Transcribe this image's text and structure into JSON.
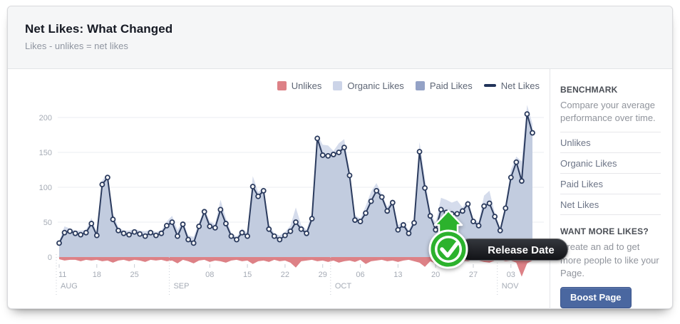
{
  "header": {
    "title": "Net Likes: What Changed",
    "subtitle": "Likes - unlikes = net likes"
  },
  "legend": [
    {
      "label": "Unlikes",
      "color": "#dd8186",
      "type": "square"
    },
    {
      "label": "Organic Likes",
      "color": "#ccd4e8",
      "type": "square"
    },
    {
      "label": "Paid Likes",
      "color": "#94a2c6",
      "type": "square"
    },
    {
      "label": "Net Likes",
      "color": "#22345a",
      "type": "line"
    }
  ],
  "sidebar": {
    "benchmark_title": "BENCHMARK",
    "benchmark_desc": "Compare your average performance over time.",
    "items": [
      "Unlikes",
      "Organic Likes",
      "Paid Likes",
      "Net Likes"
    ],
    "promo_title": "WANT MORE LIKES?",
    "promo_desc": "Create an ad to get more people to like your Page.",
    "boost_label": "Boost Page"
  },
  "chart_data": {
    "type": "area+line",
    "title": "Net Likes: What Changed",
    "y_axis": {
      "ticks": [
        0,
        50,
        100,
        150,
        200
      ],
      "ylim": [
        -30,
        235
      ]
    },
    "x_week_labels": [
      {
        "label": "11",
        "day": 0
      },
      {
        "label": "18",
        "day": 7
      },
      {
        "label": "25",
        "day": 14
      },
      {
        "label": "08",
        "day": 28
      },
      {
        "label": "15",
        "day": 35
      },
      {
        "label": "22",
        "day": 42
      },
      {
        "label": "29",
        "day": 49
      },
      {
        "label": "06",
        "day": 56
      },
      {
        "label": "13",
        "day": 63
      },
      {
        "label": "20",
        "day": 70
      },
      {
        "label": "27",
        "day": 77
      },
      {
        "label": "03",
        "day": 84
      }
    ],
    "months": [
      {
        "label": "AUG",
        "day": 0
      },
      {
        "label": "SEP",
        "day": 21
      },
      {
        "label": "OCT",
        "day": 51
      },
      {
        "label": "NOV",
        "day": 82
      }
    ],
    "series": {
      "net_likes": [
        20,
        35,
        37,
        34,
        32,
        35,
        48,
        31,
        104,
        114,
        54,
        38,
        34,
        32,
        36,
        33,
        30,
        35,
        31,
        34,
        45,
        50,
        30,
        47,
        25,
        20,
        44,
        65,
        44,
        42,
        68,
        48,
        30,
        25,
        35,
        30,
        101,
        87,
        95,
        40,
        30,
        25,
        31,
        37,
        50,
        40,
        34,
        55,
        170,
        146,
        145,
        147,
        150,
        157,
        117,
        53,
        51,
        63,
        80,
        95,
        86,
        66,
        78,
        39,
        46,
        34,
        49,
        151,
        99,
        59,
        39,
        68,
        64,
        62,
        62,
        66,
        76,
        51,
        45,
        73,
        77,
        58,
        38,
        70,
        114,
        136,
        109,
        205,
        178
      ],
      "unlikes": [
        -3,
        -5,
        -4,
        -4,
        -6,
        -4,
        -5,
        -4,
        -6,
        -5,
        -8,
        -5,
        -4,
        -6,
        -4,
        -5,
        -7,
        -4,
        -5,
        -4,
        -6,
        -5,
        -9,
        -4,
        -6,
        -9,
        -5,
        -4,
        -7,
        -5,
        -6,
        -8,
        -5,
        -4,
        -6,
        -5,
        -10,
        -6,
        -5,
        -7,
        -4,
        -6,
        -5,
        -8,
        -15,
        -6,
        -5,
        -4,
        -6,
        -5,
        -7,
        -5,
        -8,
        -6,
        -5,
        -7,
        -4,
        -10,
        -6,
        -5,
        -4,
        -6,
        -5,
        -7,
        -5,
        -4,
        -6,
        -8,
        -14,
        -6,
        -9,
        -5,
        -4,
        -6,
        -13,
        -5,
        -6,
        -4,
        -5,
        -7,
        -8,
        -5,
        -4,
        -6,
        -5,
        -8,
        -28,
        -9,
        -5
      ],
      "organic_extra": [
        0,
        4,
        0,
        0,
        0,
        0,
        3,
        0,
        0,
        0,
        0,
        0,
        0,
        0,
        0,
        0,
        0,
        0,
        0,
        0,
        0,
        4,
        0,
        0,
        0,
        0,
        0,
        0,
        0,
        0,
        8,
        0,
        0,
        0,
        0,
        0,
        5,
        0,
        0,
        0,
        0,
        0,
        0,
        0,
        6,
        0,
        0,
        5,
        0,
        10,
        8,
        0,
        5,
        6,
        0,
        0,
        0,
        0,
        8,
        6,
        0,
        0,
        0,
        0,
        0,
        0,
        0,
        6,
        0,
        0,
        0,
        12,
        14,
        10,
        6,
        0,
        0,
        0,
        0,
        8,
        10,
        0,
        0,
        0,
        6,
        0,
        0,
        4,
        8
      ]
    },
    "annotation": {
      "label": "Release Date",
      "day": 72
    },
    "colors": {
      "net_line": "#2b3b5e",
      "marker_fill": "#ffffff",
      "organic_fill": "#d5dcec",
      "net_fill": "#c2ccdf",
      "unlikes_fill": "#dd8186",
      "grid": "#ebedf0",
      "axis_text": "#a5abb5",
      "tick": "#c9cdd4",
      "badge_green": "#2cb22d"
    },
    "legend_position": "top-right",
    "grid": true
  }
}
